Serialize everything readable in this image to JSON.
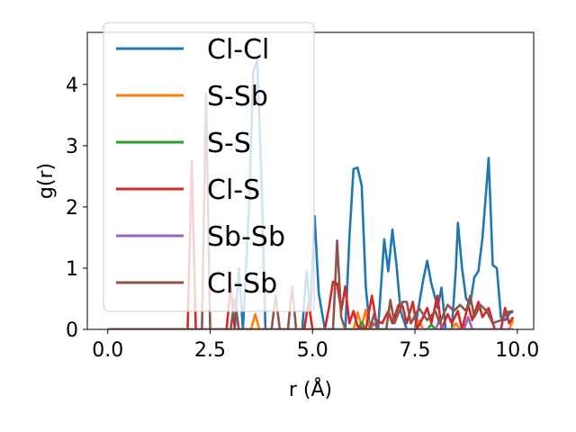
{
  "chart_data": {
    "type": "line",
    "xlabel": "r (Å)",
    "ylabel": "g(r)",
    "xlim": [
      -0.5,
      10.4
    ],
    "ylim": [
      0,
      4.85
    ],
    "x_ticks": [
      0.0,
      2.5,
      5.0,
      7.5,
      10.0
    ],
    "x_tick_labels": [
      "0.0",
      "2.5",
      "5.0",
      "7.5",
      "10.0"
    ],
    "y_ticks": [
      0,
      1,
      2,
      3,
      4
    ],
    "y_tick_labels": [
      "0",
      "1",
      "2",
      "3",
      "4"
    ],
    "grid": false,
    "legend_position": "top-left",
    "series": [
      {
        "name": "Cl-Cl",
        "color": "#1f77b4",
        "points": [
          [
            0,
            0
          ],
          [
            3.1,
            0
          ],
          [
            3.2,
            1.0
          ],
          [
            3.3,
            0
          ],
          [
            3.45,
            2.0
          ],
          [
            3.55,
            4.2
          ],
          [
            3.65,
            4.4
          ],
          [
            3.75,
            2.5
          ],
          [
            3.85,
            0
          ],
          [
            4.75,
            0
          ],
          [
            4.85,
            0.95
          ],
          [
            4.95,
            0.3
          ],
          [
            5.05,
            1.85
          ],
          [
            5.15,
            0.6
          ],
          [
            5.3,
            0
          ],
          [
            5.8,
            0
          ],
          [
            5.9,
            1.5
          ],
          [
            6.0,
            2.62
          ],
          [
            6.1,
            2.64
          ],
          [
            6.2,
            2.35
          ],
          [
            6.3,
            0.7
          ],
          [
            6.4,
            0
          ],
          [
            6.6,
            0
          ],
          [
            6.75,
            1.47
          ],
          [
            6.85,
            0.95
          ],
          [
            6.95,
            1.63
          ],
          [
            7.05,
            1.05
          ],
          [
            7.15,
            0.3
          ],
          [
            7.3,
            0
          ],
          [
            7.5,
            0
          ],
          [
            7.6,
            0.4
          ],
          [
            7.7,
            0.8
          ],
          [
            7.8,
            1.12
          ],
          [
            7.9,
            0.75
          ],
          [
            8.0,
            0.5
          ],
          [
            8.05,
            0.35
          ],
          [
            8.15,
            0.68
          ],
          [
            8.25,
            0
          ],
          [
            8.4,
            0
          ],
          [
            8.5,
            1.0
          ],
          [
            8.55,
            1.74
          ],
          [
            8.65,
            1.0
          ],
          [
            8.75,
            0.5
          ],
          [
            8.85,
            0.42
          ],
          [
            8.95,
            0.85
          ],
          [
            9.05,
            0.95
          ],
          [
            9.15,
            1.5
          ],
          [
            9.25,
            2.35
          ],
          [
            9.3,
            2.8
          ],
          [
            9.4,
            1.05
          ],
          [
            9.5,
            1.0
          ],
          [
            9.6,
            0.2
          ],
          [
            9.7,
            0.15
          ],
          [
            9.8,
            0.25
          ],
          [
            9.9,
            0.3
          ]
        ]
      },
      {
        "name": "S-Sb",
        "color": "#ff7f0e",
        "points": [
          [
            0,
            0
          ],
          [
            3.5,
            0
          ],
          [
            3.6,
            0.25
          ],
          [
            3.7,
            0
          ],
          [
            6.0,
            0
          ],
          [
            6.1,
            0.28
          ],
          [
            6.2,
            0.05
          ],
          [
            6.3,
            0.32
          ],
          [
            6.4,
            0
          ],
          [
            7.5,
            0
          ],
          [
            7.6,
            0.15
          ],
          [
            7.7,
            0
          ],
          [
            8.4,
            0
          ],
          [
            8.5,
            0.1
          ],
          [
            8.6,
            0
          ],
          [
            9.8,
            0
          ],
          [
            9.9,
            0.15
          ]
        ]
      },
      {
        "name": "S-S",
        "color": "#2ca02c",
        "points": [
          [
            0,
            0
          ],
          [
            6.1,
            0
          ],
          [
            6.2,
            0.12
          ],
          [
            6.3,
            0
          ],
          [
            7.8,
            0
          ],
          [
            7.9,
            0.08
          ],
          [
            8.0,
            0
          ],
          [
            9.9,
            0
          ]
        ]
      },
      {
        "name": "Cl-S",
        "color": "#d62728",
        "points": [
          [
            0,
            0
          ],
          [
            1.95,
            0
          ],
          [
            2.05,
            2.75
          ],
          [
            2.15,
            0
          ],
          [
            2.9,
            0
          ],
          [
            3.0,
            0.7
          ],
          [
            3.1,
            0
          ],
          [
            4.8,
            0
          ],
          [
            4.9,
            0.45
          ],
          [
            5.0,
            0
          ],
          [
            5.3,
            0
          ],
          [
            5.4,
            0.35
          ],
          [
            5.5,
            0.78
          ],
          [
            5.6,
            0.75
          ],
          [
            5.7,
            0.3
          ],
          [
            5.8,
            0.7
          ],
          [
            5.9,
            0.1
          ],
          [
            6.0,
            0.3
          ],
          [
            6.1,
            0.05
          ],
          [
            6.3,
            0
          ],
          [
            6.45,
            0.55
          ],
          [
            6.55,
            0.15
          ],
          [
            6.7,
            0.1
          ],
          [
            6.85,
            0.3
          ],
          [
            6.95,
            0.1
          ],
          [
            7.1,
            0.4
          ],
          [
            7.2,
            0.38
          ],
          [
            7.3,
            0.1
          ],
          [
            7.45,
            0.45
          ],
          [
            7.55,
            0
          ],
          [
            7.7,
            0.2
          ],
          [
            7.8,
            0.35
          ],
          [
            7.9,
            0.1
          ],
          [
            8.05,
            0.55
          ],
          [
            8.15,
            0
          ],
          [
            8.3,
            0.25
          ],
          [
            8.4,
            0.1
          ],
          [
            8.55,
            0.3
          ],
          [
            8.65,
            0
          ],
          [
            8.8,
            0.4
          ],
          [
            8.9,
            0.15
          ],
          [
            9.05,
            0.45
          ],
          [
            9.15,
            0.2
          ],
          [
            9.3,
            0.35
          ],
          [
            9.45,
            0
          ],
          [
            9.6,
            0
          ],
          [
            9.7,
            0.35
          ],
          [
            9.8,
            0.1
          ],
          [
            9.9,
            0.2
          ]
        ]
      },
      {
        "name": "Sb-Sb",
        "color": "#9467bd",
        "points": [
          [
            0,
            0
          ],
          [
            6.4,
            0
          ],
          [
            6.5,
            0.1
          ],
          [
            6.6,
            0
          ],
          [
            8.0,
            0
          ],
          [
            8.1,
            0.15
          ],
          [
            8.2,
            0
          ],
          [
            8.7,
            0
          ],
          [
            8.8,
            0.2
          ],
          [
            8.9,
            0
          ],
          [
            9.9,
            0
          ]
        ]
      },
      {
        "name": "Cl-Sb",
        "color": "#8c564b",
        "points": [
          [
            0,
            0
          ],
          [
            2.3,
            0
          ],
          [
            2.4,
            3.85
          ],
          [
            2.5,
            0
          ],
          [
            3.0,
            0
          ],
          [
            3.1,
            0.5
          ],
          [
            3.2,
            0
          ],
          [
            4.0,
            0
          ],
          [
            4.1,
            0.55
          ],
          [
            4.2,
            0
          ],
          [
            4.4,
            0
          ],
          [
            4.5,
            0.7
          ],
          [
            4.6,
            0
          ],
          [
            5.5,
            0
          ],
          [
            5.6,
            1.45
          ],
          [
            5.7,
            0.2
          ],
          [
            5.8,
            0
          ],
          [
            6.4,
            0
          ],
          [
            6.5,
            0.25
          ],
          [
            6.6,
            0
          ],
          [
            6.8,
            0
          ],
          [
            6.9,
            0.48
          ],
          [
            7.0,
            0.1
          ],
          [
            7.2,
            0.45
          ],
          [
            7.3,
            0.45
          ],
          [
            7.4,
            0.1
          ],
          [
            7.6,
            0.35
          ],
          [
            7.8,
            0.15
          ],
          [
            8.0,
            0.3
          ],
          [
            8.1,
            0.1
          ],
          [
            8.3,
            0.4
          ],
          [
            8.45,
            0.3
          ],
          [
            8.6,
            0.4
          ],
          [
            8.75,
            0.3
          ],
          [
            8.85,
            0.55
          ],
          [
            8.95,
            0.2
          ],
          [
            9.1,
            0.4
          ],
          [
            9.25,
            0.3
          ],
          [
            9.4,
            0.1
          ],
          [
            9.6,
            0.15
          ],
          [
            9.75,
            0.28
          ],
          [
            9.9,
            0.3
          ]
        ]
      }
    ]
  }
}
